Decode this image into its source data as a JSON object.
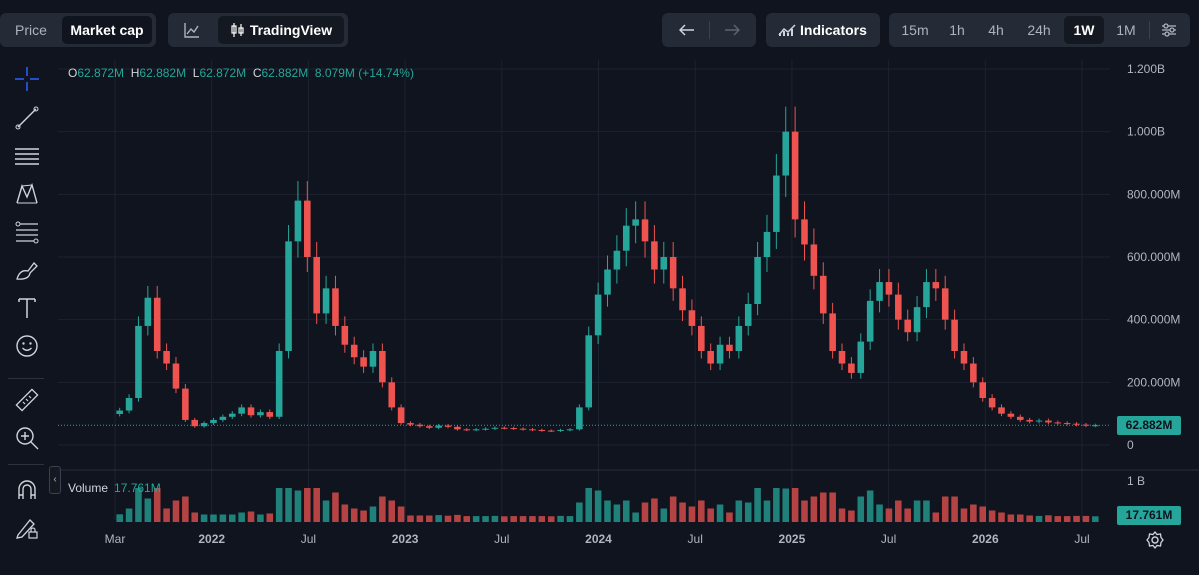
{
  "header": {
    "mode_tabs": [
      {
        "label": "Price",
        "active": false
      },
      {
        "label": "Market cap",
        "active": true
      }
    ],
    "chart_style": {
      "tradingview_label": "TradingView"
    },
    "indicators_label": "Indicators",
    "timeframes": [
      {
        "label": "15m",
        "active": false
      },
      {
        "label": "1h",
        "active": false
      },
      {
        "label": "4h",
        "active": false
      },
      {
        "label": "24h",
        "active": false
      },
      {
        "label": "1W",
        "active": true
      },
      {
        "label": "1M",
        "active": false
      }
    ]
  },
  "toolbar": {
    "tools": [
      "crosshair-icon",
      "trend-line-icon",
      "horizontal-lines-icon",
      "pattern-icon",
      "fib-icon",
      "brush-icon",
      "text-icon",
      "emoji-icon",
      "ruler-icon",
      "zoom-in-icon",
      "magnet-icon",
      "lock-drawing-icon"
    ]
  },
  "legend": {
    "o_key": "O",
    "o_val": "62.872M",
    "h_key": "H",
    "h_val": "62.882M",
    "l_key": "L",
    "l_val": "62.872M",
    "c_key": "C",
    "c_val": "62.882M",
    "change": "8.079M (+14.74%)"
  },
  "volume_legend": {
    "label": "Volume",
    "value": "17.761M"
  },
  "price_tag": "62.882M",
  "volume_tag": "17.761M",
  "colors": {
    "up": "#26a69a",
    "down": "#ef5350",
    "bg": "#0f141e",
    "grid": "#1c2230"
  },
  "chart_data": {
    "type": "candlestick",
    "y_ticks": [
      "1.200B",
      "1.000B",
      "800.000M",
      "600.000M",
      "400.000M",
      "200.000M",
      "0"
    ],
    "ylim": [
      0,
      1200
    ],
    "y_unit": "M",
    "x_ticks": [
      "Mar",
      "2022",
      "Jul",
      "2023",
      "Jul",
      "2024",
      "Jul",
      "2025",
      "Jul",
      "2026",
      "Jul"
    ],
    "volume_axis_label": "1 B",
    "series": [
      {
        "name": "Market cap",
        "values": [
          110,
          150,
          380,
          470,
          300,
          260,
          180,
          80,
          60,
          70,
          80,
          90,
          100,
          120,
          95,
          105,
          90,
          300,
          650,
          780,
          600,
          420,
          500,
          380,
          320,
          280,
          250,
          300,
          200,
          120,
          70,
          65,
          60,
          55,
          62,
          58,
          50,
          48,
          50,
          52,
          55,
          54,
          52,
          50,
          48,
          46,
          45,
          48,
          50,
          120,
          350,
          480,
          560,
          620,
          700,
          720,
          650,
          560,
          600,
          500,
          430,
          380,
          300,
          260,
          320,
          300,
          380,
          450,
          600,
          680,
          860,
          1000,
          720,
          640,
          540,
          420,
          300,
          260,
          230,
          330,
          460,
          520,
          480,
          400,
          360,
          440,
          520,
          500,
          400,
          300,
          260,
          200,
          150,
          120,
          100,
          90,
          80,
          75,
          78,
          72,
          70,
          68,
          65,
          62,
          63
        ]
      }
    ]
  }
}
